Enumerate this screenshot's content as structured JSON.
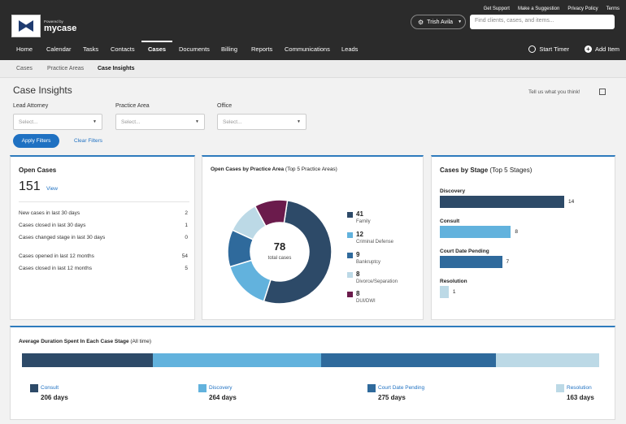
{
  "brand": {
    "powered_by": "Powered by",
    "name": "mycase"
  },
  "top_links": [
    "Get Support",
    "Make a Suggestion",
    "Privacy Policy",
    "Terms"
  ],
  "user": {
    "name": "Trish Avila"
  },
  "search": {
    "placeholder": "Find clients, cases, and items..."
  },
  "nav": {
    "items": [
      "Home",
      "Calendar",
      "Tasks",
      "Contacts",
      "Cases",
      "Documents",
      "Billing",
      "Reports",
      "Communications",
      "Leads"
    ],
    "active": "Cases",
    "start_timer": "Start Timer",
    "add_item": "Add Item"
  },
  "subnav": {
    "items": [
      "Cases",
      "Practice Areas",
      "Case Insights"
    ],
    "active": "Case Insights"
  },
  "page": {
    "title": "Case Insights",
    "feedback": "Tell us what you think!"
  },
  "filters": {
    "lead_attorney": {
      "label": "Lead Attorney",
      "placeholder": "Select..."
    },
    "practice_area": {
      "label": "Practice Area",
      "placeholder": "Select..."
    },
    "office": {
      "label": "Office",
      "placeholder": "Select..."
    },
    "apply": "Apply Filters",
    "clear": "Clear Filters"
  },
  "open_cases": {
    "title": "Open Cases",
    "count": "151",
    "view": "View",
    "rows": [
      {
        "label": "New cases in last 30 days",
        "value": "2"
      },
      {
        "label": "Cases closed in last 30 days",
        "value": "1"
      },
      {
        "label": "Cases changed stage in last 30 days",
        "value": "0"
      },
      {
        "label": "Cases opened in last 12 months",
        "value": "54"
      },
      {
        "label": "Cases closed in last 12 months",
        "value": "5"
      }
    ]
  },
  "practice_area": {
    "title": "Open Cases by Practice Area",
    "subtitle": "(Top 5 Practice Areas)",
    "total": "78",
    "total_label": "total cases",
    "slices": [
      {
        "name": "Family",
        "value": 41,
        "color": "#2d4a68"
      },
      {
        "name": "Criminal Defense",
        "value": 12,
        "color": "#62b2dd"
      },
      {
        "name": "Bankruptcy",
        "value": 9,
        "color": "#2f6a9c"
      },
      {
        "name": "Divorce/Separation",
        "value": 8,
        "color": "#bcd9e6"
      },
      {
        "name": "DUI/DWI",
        "value": 8,
        "color": "#6b1b4c"
      }
    ]
  },
  "stages": {
    "title": "Cases by Stage",
    "subtitle": "(Top 5 Stages)",
    "max": 14,
    "items": [
      {
        "name": "Discovery",
        "value": 14,
        "color": "#2d4a68"
      },
      {
        "name": "Consult",
        "value": 8,
        "color": "#62b2dd"
      },
      {
        "name": "Court Date Pending",
        "value": 7,
        "color": "#2f6a9c"
      },
      {
        "name": "Resolution",
        "value": 1,
        "color": "#bcd9e6"
      }
    ]
  },
  "avg_duration": {
    "title": "Average Duration Spent In Each Case Stage",
    "subtitle": "(All time)",
    "items": [
      {
        "name": "Consult",
        "days": 206,
        "days_label": "206 days",
        "color": "#2d4a68"
      },
      {
        "name": "Discovery",
        "days": 264,
        "days_label": "264 days",
        "color": "#62b2dd"
      },
      {
        "name": "Court Date Pending",
        "days": 275,
        "days_label": "275 days",
        "color": "#2f6a9c"
      },
      {
        "name": "Resolution",
        "days": 163,
        "days_label": "163 days",
        "color": "#bcd9e6"
      }
    ]
  }
}
